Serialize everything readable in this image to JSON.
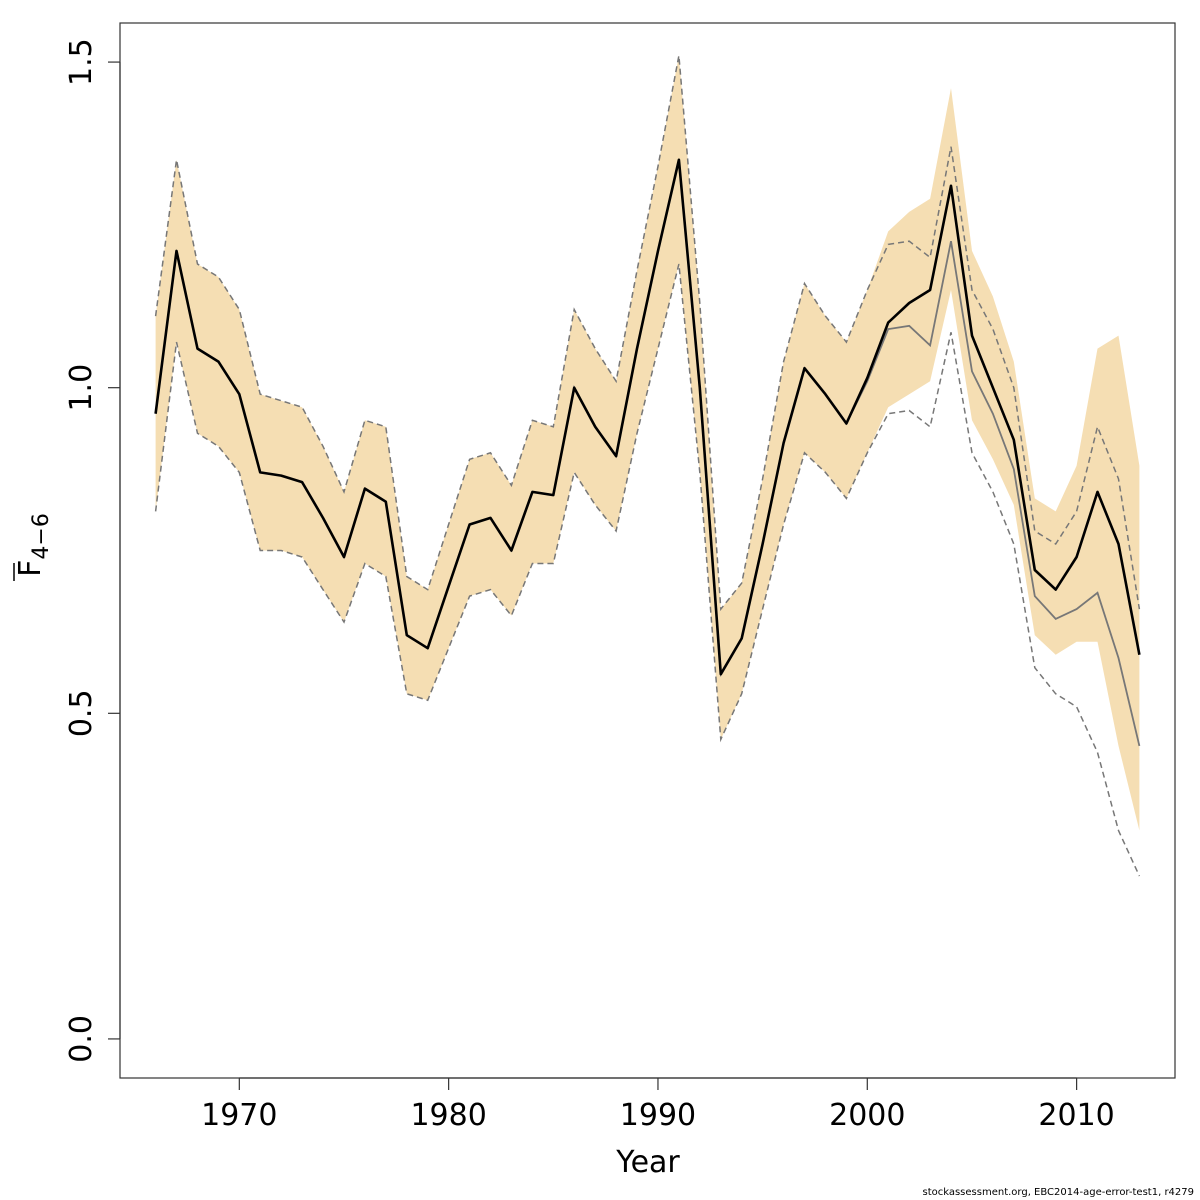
{
  "chart_data": {
    "type": "line",
    "xlabel": "Year",
    "ylabel": {
      "main": "F",
      "subscript": "4−6"
    },
    "xlim": [
      1964.3,
      2014.7
    ],
    "ylim": [
      -0.06,
      1.56
    ],
    "xticks": [
      1970,
      1980,
      1990,
      2000,
      2010
    ],
    "yticks": [
      0.0,
      0.5,
      1.0,
      1.5
    ],
    "ytick_labels": [
      "0.0",
      "0.5",
      "1.0",
      "1.5"
    ],
    "grid": false,
    "legend": "none",
    "colors": {
      "band": "#f5deb3",
      "estimate": "#000000",
      "comparison": "#777777",
      "comparison_bounds": "#777777"
    },
    "x": [
      1966,
      1967,
      1968,
      1969,
      1970,
      1971,
      1972,
      1973,
      1974,
      1975,
      1976,
      1977,
      1978,
      1979,
      1980,
      1981,
      1982,
      1983,
      1984,
      1985,
      1986,
      1987,
      1988,
      1989,
      1990,
      1991,
      1992,
      1993,
      1994,
      1995,
      1996,
      1997,
      1998,
      1999,
      2000,
      2001,
      2002,
      2003,
      2004,
      2005,
      2006,
      2007,
      2008,
      2009,
      2010,
      2011,
      2012,
      2013
    ],
    "series": [
      {
        "style": "confidence-band",
        "lower": [
          0.81,
          1.07,
          0.93,
          0.91,
          0.87,
          0.75,
          0.75,
          0.74,
          0.69,
          0.64,
          0.73,
          0.71,
          0.53,
          0.52,
          0.6,
          0.68,
          0.69,
          0.65,
          0.73,
          0.73,
          0.87,
          0.82,
          0.78,
          0.93,
          1.06,
          1.19,
          0.87,
          0.46,
          0.53,
          0.66,
          0.79,
          0.9,
          0.87,
          0.83,
          0.9,
          0.97,
          0.99,
          1.01,
          1.15,
          0.95,
          0.89,
          0.82,
          0.62,
          0.59,
          0.61,
          0.61,
          0.45,
          0.32
        ],
        "upper": [
          1.11,
          1.35,
          1.19,
          1.17,
          1.12,
          0.99,
          0.98,
          0.97,
          0.91,
          0.84,
          0.95,
          0.94,
          0.71,
          0.69,
          0.79,
          0.89,
          0.9,
          0.85,
          0.95,
          0.94,
          1.12,
          1.06,
          1.01,
          1.18,
          1.34,
          1.51,
          1.13,
          0.66,
          0.7,
          0.86,
          1.04,
          1.16,
          1.11,
          1.07,
          1.15,
          1.24,
          1.27,
          1.29,
          1.46,
          1.21,
          1.14,
          1.04,
          0.83,
          0.81,
          0.88,
          1.06,
          1.08,
          0.88
        ]
      },
      {
        "style": "dashed",
        "role": "lower",
        "values": [
          0.81,
          1.07,
          0.93,
          0.91,
          0.87,
          0.75,
          0.75,
          0.74,
          0.69,
          0.64,
          0.73,
          0.71,
          0.53,
          0.52,
          0.6,
          0.68,
          0.69,
          0.65,
          0.73,
          0.73,
          0.87,
          0.82,
          0.78,
          0.93,
          1.06,
          1.19,
          0.87,
          0.46,
          0.53,
          0.66,
          0.79,
          0.9,
          0.87,
          0.83,
          0.9,
          0.96,
          0.965,
          0.94,
          1.085,
          0.9,
          0.84,
          0.76,
          0.57,
          0.53,
          0.51,
          0.44,
          0.32,
          0.25
        ]
      },
      {
        "style": "dashed",
        "role": "upper",
        "values": [
          1.11,
          1.35,
          1.19,
          1.17,
          1.12,
          0.99,
          0.98,
          0.97,
          0.91,
          0.84,
          0.95,
          0.94,
          0.71,
          0.69,
          0.79,
          0.89,
          0.9,
          0.85,
          0.95,
          0.94,
          1.12,
          1.06,
          1.01,
          1.18,
          1.34,
          1.51,
          1.13,
          0.66,
          0.7,
          0.86,
          1.04,
          1.16,
          1.11,
          1.07,
          1.15,
          1.22,
          1.225,
          1.2,
          1.37,
          1.15,
          1.09,
          1.0,
          0.78,
          0.76,
          0.81,
          0.94,
          0.86,
          0.66
        ]
      },
      {
        "style": "solid-thin",
        "values": [
          0.96,
          1.21,
          1.06,
          1.04,
          0.99,
          0.87,
          0.865,
          0.855,
          0.8,
          0.74,
          0.845,
          0.825,
          0.62,
          0.6,
          0.695,
          0.79,
          0.8,
          0.75,
          0.84,
          0.835,
          1.0,
          0.94,
          0.895,
          1.06,
          1.21,
          1.35,
          1.0,
          0.56,
          0.615,
          0.76,
          0.915,
          1.03,
          0.99,
          0.945,
          1.01,
          1.09,
          1.095,
          1.065,
          1.225,
          1.025,
          0.96,
          0.875,
          0.68,
          0.645,
          0.66,
          0.685,
          0.585,
          0.45
        ]
      },
      {
        "style": "solid-thick",
        "values": [
          0.96,
          1.21,
          1.06,
          1.04,
          0.99,
          0.87,
          0.865,
          0.855,
          0.8,
          0.74,
          0.845,
          0.825,
          0.62,
          0.6,
          0.695,
          0.79,
          0.8,
          0.75,
          0.84,
          0.835,
          1.0,
          0.94,
          0.895,
          1.06,
          1.21,
          1.35,
          1.0,
          0.56,
          0.615,
          0.76,
          0.915,
          1.03,
          0.99,
          0.945,
          1.015,
          1.1,
          1.13,
          1.15,
          1.31,
          1.08,
          1.0,
          0.92,
          0.72,
          0.69,
          0.74,
          0.84,
          0.76,
          0.59
        ]
      }
    ]
  },
  "footer": "stockassessment.org, EBC2014-age-error-test1, r4279"
}
